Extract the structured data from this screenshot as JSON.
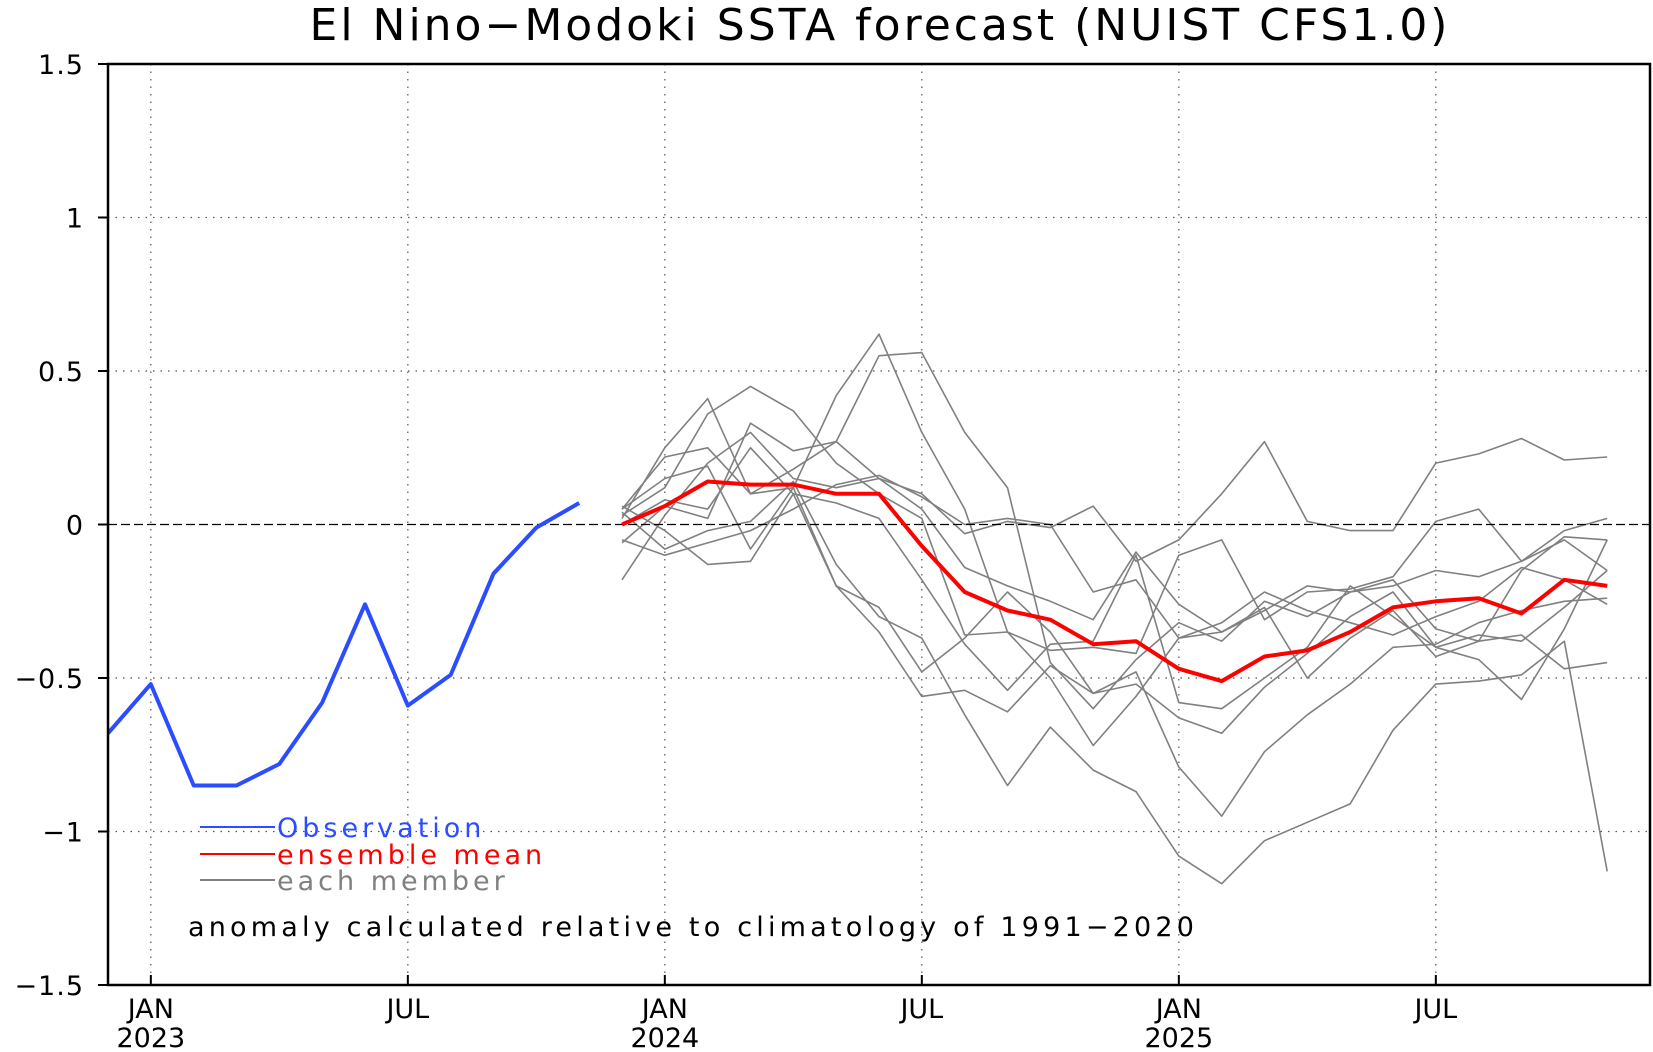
{
  "chart_data": {
    "type": "line",
    "title": "El Nino−Modoki SSTA forecast (NUIST CFS1.0)",
    "note": "anomaly calculated relative to climatology of 1991−2020",
    "xlabel": "",
    "ylabel": "",
    "ylim": [
      -1.5,
      1.5
    ],
    "xlim": [
      "2022-12",
      "2025-12"
    ],
    "yticks": [
      {
        "value": 1.5,
        "label": "1.5"
      },
      {
        "value": 1,
        "label": "1"
      },
      {
        "value": 0.5,
        "label": "0.5"
      },
      {
        "value": 0,
        "label": "0"
      },
      {
        "value": -0.5,
        "label": "−0.5"
      },
      {
        "value": -1,
        "label": "−1"
      },
      {
        "value": -1.5,
        "label": "−1.5"
      }
    ],
    "xticks": [
      {
        "date": "2023-01",
        "label": "JAN",
        "year": "2023"
      },
      {
        "date": "2023-07",
        "label": "JUL",
        "year": ""
      },
      {
        "date": "2024-01",
        "label": "JAN",
        "year": "2024"
      },
      {
        "date": "2024-07",
        "label": "JUL",
        "year": ""
      },
      {
        "date": "2025-01",
        "label": "JAN",
        "year": "2025"
      },
      {
        "date": "2025-07",
        "label": "JUL",
        "year": ""
      }
    ],
    "grid": true,
    "zero_line": true,
    "legend_position": "bottom-left",
    "colors": {
      "observation": "#2b4dff",
      "ensemble_mean": "#ff0000",
      "member": "#808080"
    },
    "series": [
      {
        "name": "Observation",
        "role": "observation",
        "x": [
          "2022-12",
          "2023-01",
          "2023-02",
          "2023-03",
          "2023-04",
          "2023-05",
          "2023-06",
          "2023-07",
          "2023-08",
          "2023-09",
          "2023-10",
          "2023-11"
        ],
        "values": [
          -0.68,
          -0.52,
          -0.85,
          -0.85,
          -0.78,
          -0.58,
          -0.26,
          -0.59,
          -0.49,
          -0.16,
          -0.01,
          0.07
        ]
      },
      {
        "name": "ensemble mean",
        "role": "ensemble_mean",
        "x": [
          "2023-12",
          "2024-01",
          "2024-02",
          "2024-03",
          "2024-04",
          "2024-05",
          "2024-06",
          "2024-07",
          "2024-08",
          "2024-09",
          "2024-10",
          "2024-11",
          "2024-12",
          "2025-01",
          "2025-02",
          "2025-03",
          "2025-04",
          "2025-05",
          "2025-06",
          "2025-07",
          "2025-08",
          "2025-09",
          "2025-10",
          "2025-11"
        ],
        "values": [
          0.0,
          0.06,
          0.14,
          0.13,
          0.13,
          0.1,
          0.1,
          -0.07,
          -0.22,
          -0.28,
          -0.31,
          -0.39,
          -0.38,
          -0.47,
          -0.51,
          -0.43,
          -0.41,
          -0.35,
          -0.27,
          -0.25,
          -0.24,
          -0.29,
          -0.18,
          -0.2
        ]
      },
      {
        "name": "each member",
        "role": "members",
        "x": [
          "2023-12",
          "2024-01",
          "2024-02",
          "2024-03",
          "2024-04",
          "2024-05",
          "2024-06",
          "2024-07",
          "2024-08",
          "2024-09",
          "2024-10",
          "2024-11",
          "2024-12",
          "2025-01",
          "2025-02",
          "2025-03",
          "2025-04",
          "2025-05",
          "2025-06",
          "2025-07",
          "2025-08",
          "2025-09",
          "2025-10",
          "2025-11"
        ],
        "members": [
          [
            0.05,
            0.22,
            0.25,
            0.1,
            0.18,
            0.27,
            0.55,
            0.56,
            0.3,
            0.12,
            -0.45,
            -0.6,
            -0.44,
            -0.32,
            -0.38,
            -0.25,
            -0.3,
            -0.22,
            -0.18,
            -0.34,
            -0.38,
            -0.15,
            -0.04,
            -0.05
          ],
          [
            0.02,
            0.25,
            0.41,
            0.1,
            0.12,
            0.42,
            0.62,
            0.3,
            0.05,
            -0.35,
            -0.41,
            -0.4,
            -0.42,
            -0.1,
            -0.05,
            -0.31,
            -0.22,
            -0.21,
            -0.17,
            0.01,
            0.05,
            -0.12,
            -0.02,
            0.02
          ],
          [
            0.03,
            0.12,
            0.36,
            0.45,
            0.37,
            0.2,
            0.1,
            0.02,
            -0.36,
            -0.35,
            -0.5,
            -0.72,
            -0.56,
            -0.37,
            -0.32,
            -0.22,
            -0.28,
            -0.32,
            -0.36,
            -0.3,
            -0.25,
            -0.14,
            -0.18,
            -0.26
          ],
          [
            -0.06,
            0.06,
            0.02,
            0.33,
            0.24,
            0.27,
            0.15,
            0.1,
            -0.03,
            0.01,
            -0.01,
            0.06,
            -0.12,
            -0.05,
            0.1,
            0.27,
            0.01,
            -0.02,
            -0.02,
            0.2,
            0.23,
            0.28,
            0.21,
            0.22
          ],
          [
            -0.18,
            0.03,
            0.2,
            0.3,
            0.15,
            0.12,
            0.15,
            0.05,
            -0.14,
            -0.2,
            -0.25,
            -0.31,
            -0.09,
            -0.26,
            -0.35,
            -0.27,
            -0.5,
            -0.37,
            -0.28,
            -0.43,
            -0.38,
            -0.36,
            -0.47,
            -0.45
          ],
          [
            0.06,
            -0.02,
            -0.13,
            -0.12,
            0.1,
            -0.2,
            -0.27,
            -0.48,
            -0.37,
            -0.22,
            -0.35,
            -0.55,
            -0.52,
            -0.63,
            -0.68,
            -0.53,
            -0.42,
            -0.3,
            -0.22,
            -0.4,
            -0.44,
            -0.57,
            -0.34,
            -0.05
          ],
          [
            0.0,
            0.08,
            0.05,
            0.25,
            0.1,
            0.07,
            0.02,
            -0.18,
            -0.39,
            -0.54,
            -0.39,
            -0.38,
            -0.1,
            -0.58,
            -0.6,
            -0.5,
            -0.4,
            -0.2,
            -0.3,
            -0.4,
            -0.36,
            -0.38,
            -0.27,
            -0.15
          ],
          [
            0.04,
            -0.08,
            -0.02,
            0.01,
            0.14,
            -0.13,
            -0.3,
            -0.37,
            -0.62,
            -0.85,
            -0.66,
            -0.8,
            -0.87,
            -1.08,
            -1.17,
            -1.03,
            -0.97,
            -0.91,
            -0.67,
            -0.52,
            -0.51,
            -0.49,
            -0.38,
            -1.13
          ],
          [
            0.05,
            0.15,
            0.19,
            -0.08,
            0.12,
            -0.2,
            -0.35,
            -0.56,
            -0.54,
            -0.61,
            -0.46,
            -0.55,
            -0.48,
            -0.79,
            -0.95,
            -0.74,
            -0.62,
            -0.52,
            -0.4,
            -0.39,
            -0.32,
            -0.28,
            -0.25,
            -0.24
          ],
          [
            -0.05,
            -0.1,
            -0.06,
            -0.02,
            0.05,
            0.13,
            0.16,
            0.09,
            0.0,
            0.02,
            0.0,
            -0.22,
            -0.18,
            -0.37,
            -0.35,
            -0.28,
            -0.2,
            -0.22,
            -0.2,
            -0.15,
            -0.17,
            -0.12,
            -0.05,
            -0.15
          ]
        ]
      }
    ],
    "legend": [
      {
        "label": "Observation",
        "color": "#2b4dff"
      },
      {
        "label": "ensemble mean",
        "color": "#ff0000"
      },
      {
        "label": "each member",
        "color": "#808080"
      }
    ]
  }
}
